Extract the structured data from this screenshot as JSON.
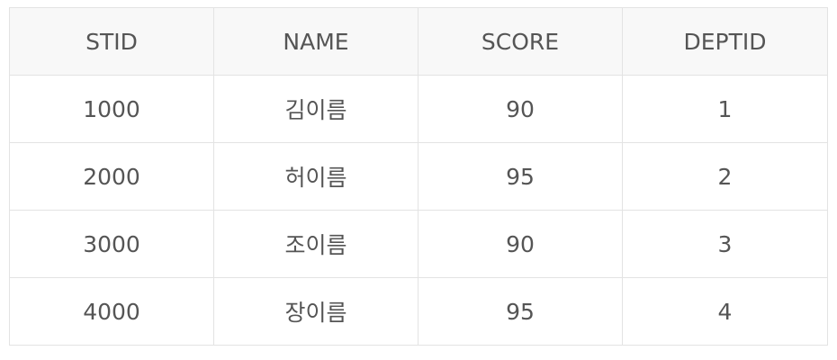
{
  "table": {
    "headers": [
      "STID",
      "NAME",
      "SCORE",
      "DEPTID"
    ],
    "rows": [
      [
        "1000",
        "김이름",
        "90",
        "1"
      ],
      [
        "2000",
        "허이름",
        "95",
        "2"
      ],
      [
        "3000",
        "조이름",
        "90",
        "3"
      ],
      [
        "4000",
        "장이름",
        "95",
        "4"
      ]
    ]
  },
  "colors": {
    "text": "#555555",
    "border": "#e3e3e3",
    "header_background": "#f8f8f8",
    "row_background": "#ffffff"
  }
}
